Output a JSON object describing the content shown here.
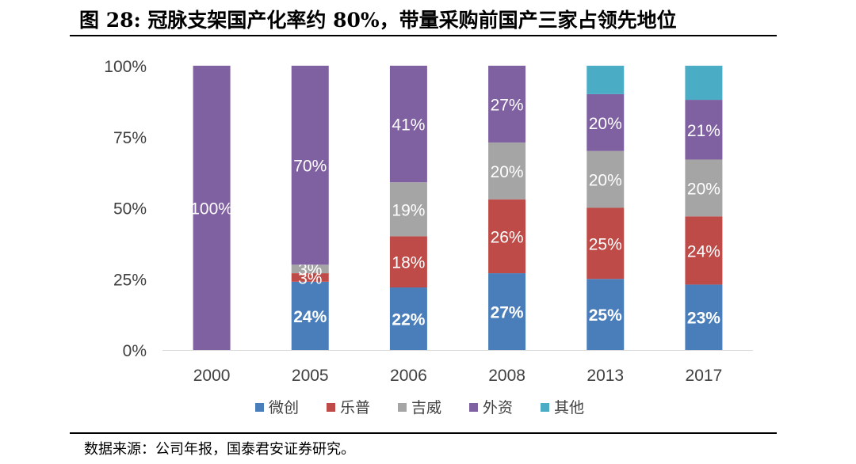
{
  "title": "图 28: 冠脉支架国产化率约 80%，带量采购前国产三家占领先地位",
  "source": "数据来源：公司年报，国泰君安证券研究。",
  "chart_data": {
    "type": "bar",
    "stacked": true,
    "categories": [
      "2000",
      "2005",
      "2006",
      "2008",
      "2013",
      "2017"
    ],
    "ylim": [
      0,
      100
    ],
    "yticks": [
      "0%",
      "25%",
      "50%",
      "75%",
      "100%"
    ],
    "legend_position": "bottom",
    "grid": false,
    "series": [
      {
        "name": "微创",
        "color": "#4a7ebb",
        "values": [
          0,
          24,
          22,
          27,
          25,
          23
        ],
        "labels": [
          "",
          "24%",
          "22%",
          "27%",
          "25%",
          "23%"
        ],
        "label_bold": true
      },
      {
        "name": "乐普",
        "color": "#be4b48",
        "values": [
          0,
          3,
          18,
          26,
          25,
          24
        ],
        "labels": [
          "",
          "3%",
          "18%",
          "26%",
          "25%",
          "24%"
        ],
        "label_bold": false
      },
      {
        "name": "吉威",
        "color": "#a5a5a5",
        "values": [
          0,
          3,
          19,
          20,
          20,
          20
        ],
        "labels": [
          "",
          "3%",
          "19%",
          "20%",
          "20%",
          "20%"
        ],
        "label_bold": false
      },
      {
        "name": "外资",
        "color": "#7f60a0",
        "values": [
          100,
          70,
          41,
          27,
          20,
          21
        ],
        "labels": [
          "100%",
          "70%",
          "41%",
          "27%",
          "20%",
          "21%"
        ],
        "label_bold": false
      },
      {
        "name": "其他",
        "color": "#4bacc6",
        "values": [
          0,
          0,
          0,
          0,
          10,
          12
        ],
        "labels": [
          "",
          "",
          "",
          "",
          "",
          ""
        ],
        "label_bold": false
      }
    ]
  }
}
